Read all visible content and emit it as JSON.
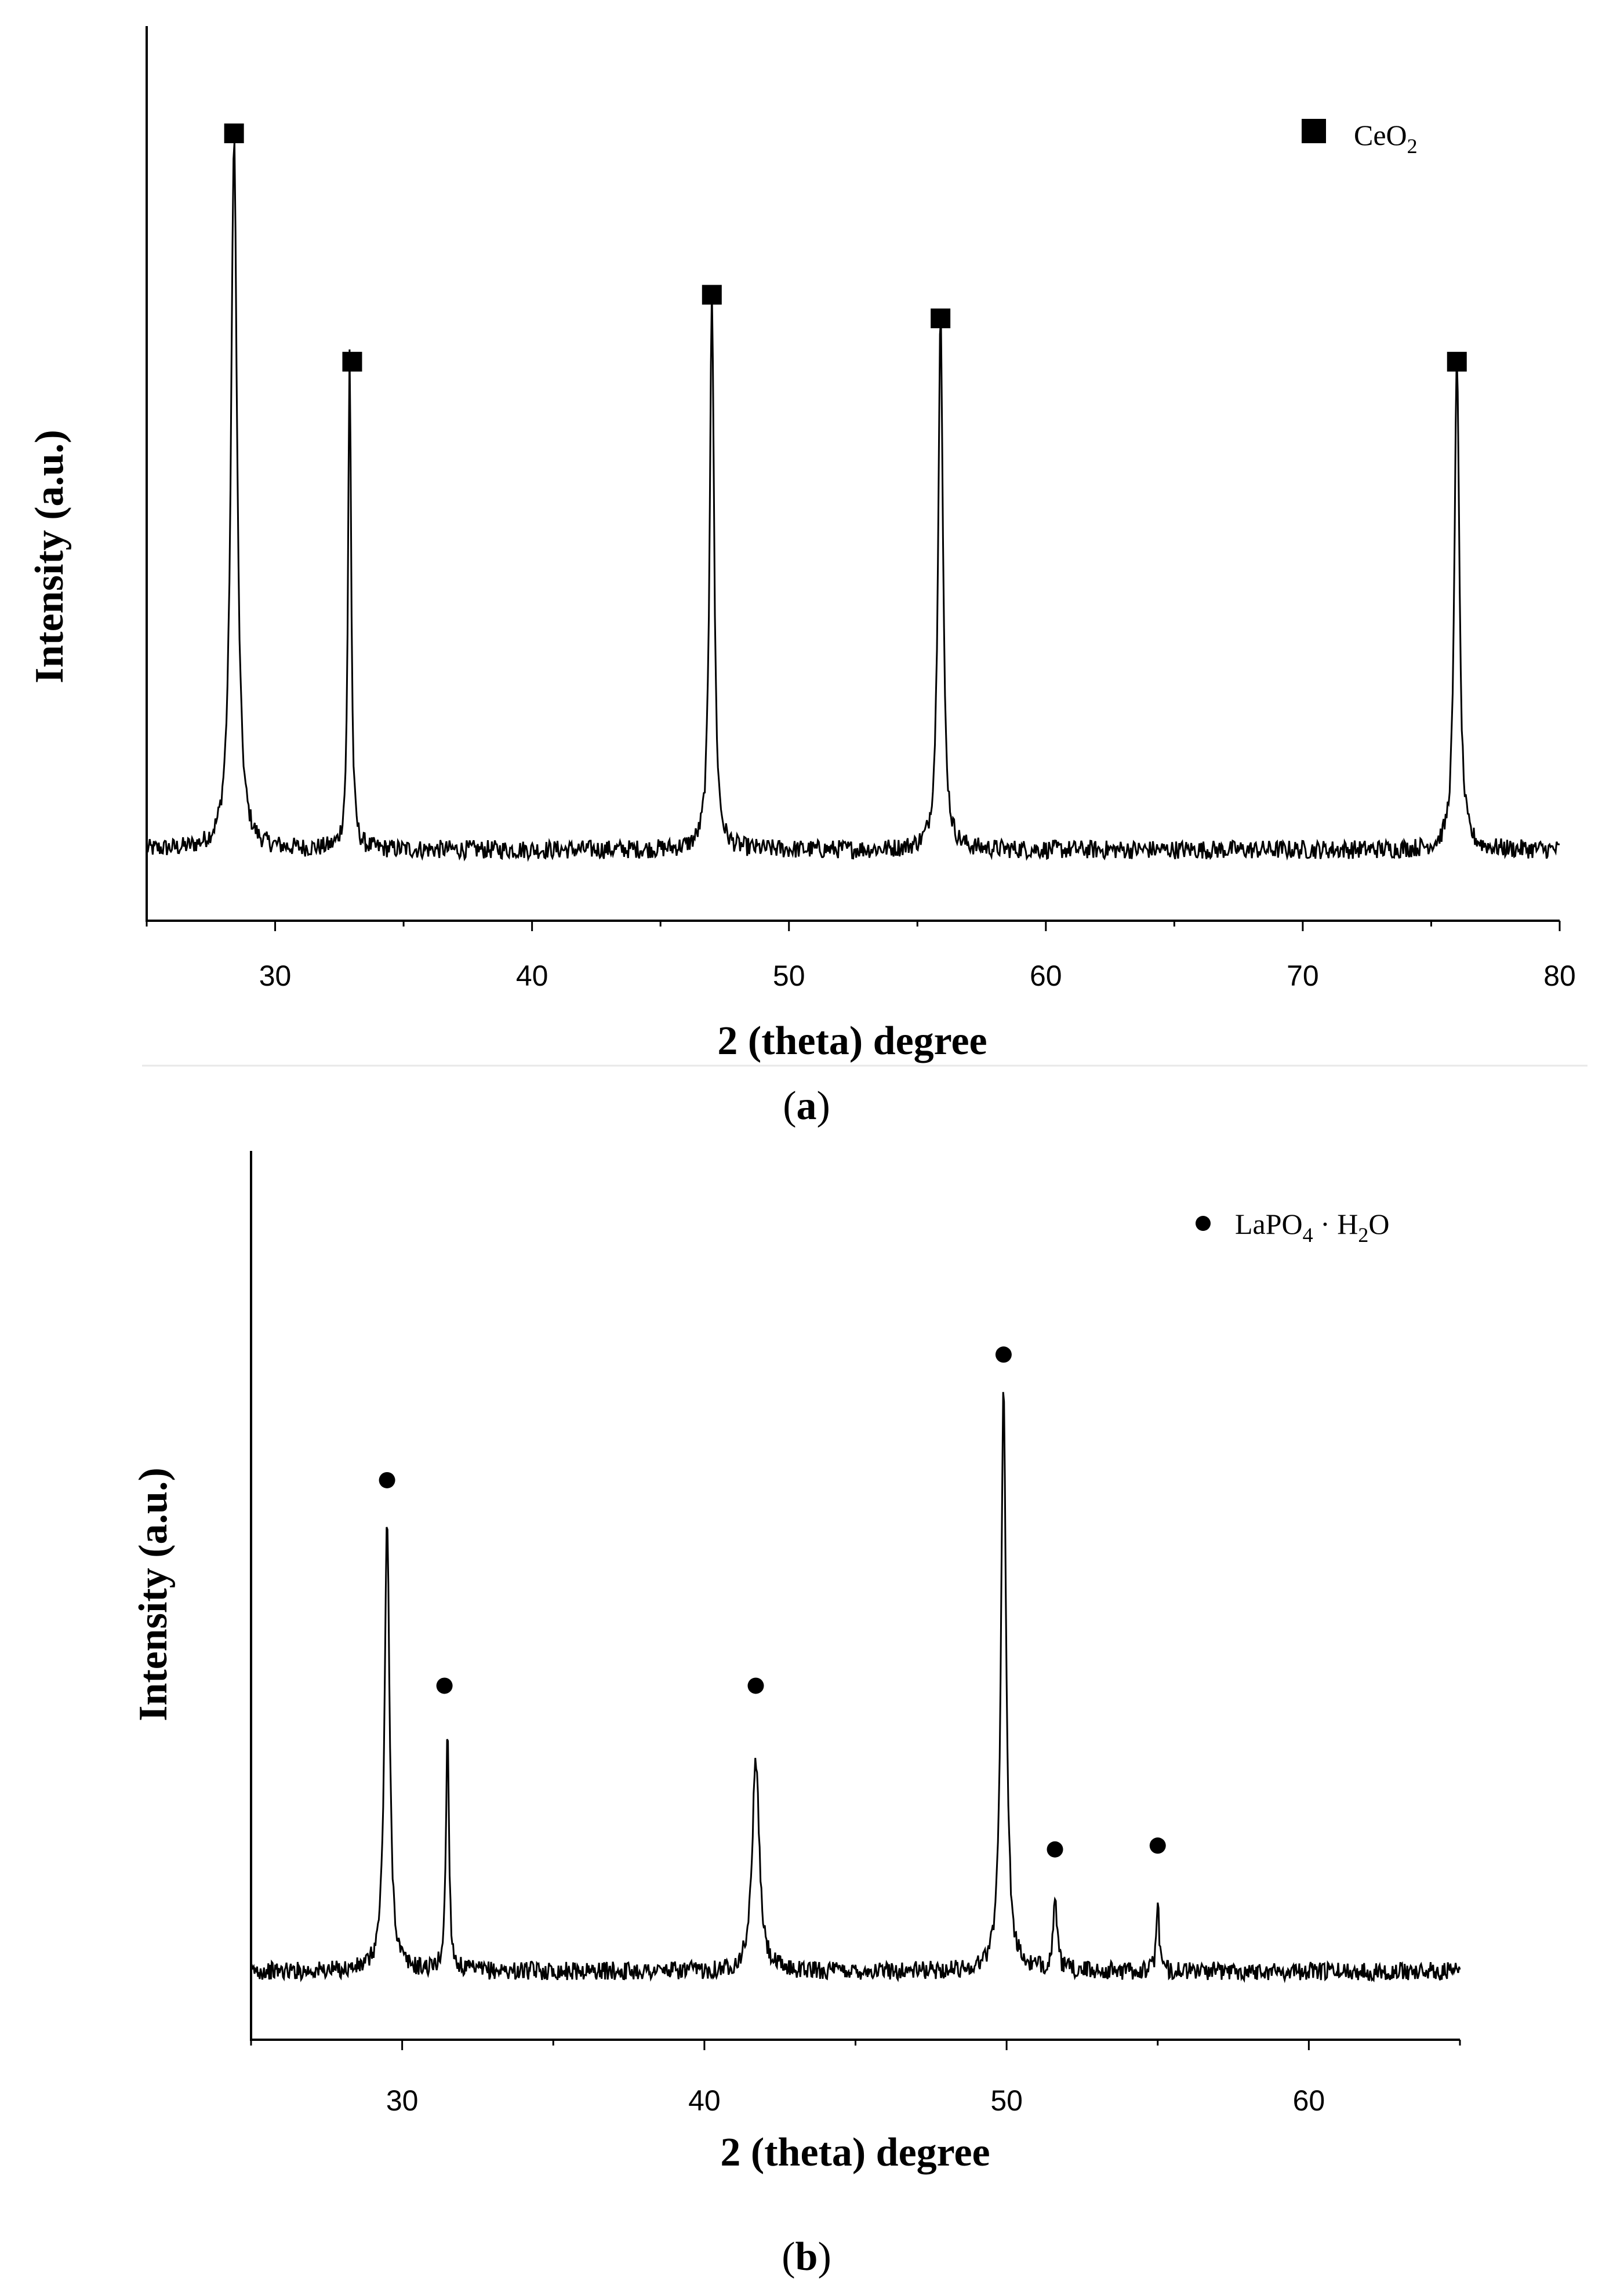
{
  "chart_data": [
    {
      "type": "line",
      "panel": "a",
      "caption_open": "(",
      "caption_letter": "a",
      "caption_close": ")",
      "xlabel": "2 (theta) degree",
      "ylabel": "Intensity (a.u.)",
      "xlim": [
        25,
        80
      ],
      "ylim": [
        0,
        100
      ],
      "xticks": [
        30,
        40,
        50,
        60,
        70,
        80
      ],
      "x_minor_step": 5,
      "yticks_shown": false,
      "legend": {
        "marker": "square",
        "name": "CeO",
        "sub": "2",
        "position": "top-right"
      },
      "baseline": 9,
      "noise": 1.2,
      "peaks": [
        {
          "x": 28.4,
          "height": 91,
          "width": 0.14
        },
        {
          "x": 32.9,
          "height": 64,
          "width": 0.07
        },
        {
          "x": 47.0,
          "height": 72,
          "width": 0.1
        },
        {
          "x": 55.9,
          "height": 69,
          "width": 0.11
        },
        {
          "x": 76.0,
          "height": 64,
          "width": 0.11
        }
      ],
      "series": [
        {
          "name": "CeO2",
          "marker": "square",
          "points": [
            [
              28.4,
              100
            ],
            [
              33.0,
              71
            ],
            [
              47.0,
              79.5
            ],
            [
              55.9,
              76.5
            ],
            [
              76.0,
              71
            ]
          ]
        }
      ]
    },
    {
      "type": "line",
      "panel": "b",
      "caption_open": "(",
      "caption_letter": "b",
      "caption_close": ")",
      "xlabel": "2 (theta) degree",
      "ylabel": "Intensity (a.u.)",
      "xlim": [
        25,
        65
      ],
      "ylim": [
        0,
        100
      ],
      "xticks": [
        30,
        40,
        50,
        60
      ],
      "x_minor_step": 5,
      "yticks_shown": false,
      "legend": {
        "marker": "circle",
        "name": "LaPO",
        "sub1": "4",
        "mid": " · H",
        "sub2": "2",
        "tail": "O",
        "position": "top-right"
      },
      "baseline": 9,
      "noise": 1.2,
      "peaks": [
        {
          "x": 29.5,
          "height": 59,
          "width": 0.1
        },
        {
          "x": 31.5,
          "height": 32,
          "width": 0.06
        },
        {
          "x": 41.7,
          "height": 28,
          "width": 0.14
        },
        {
          "x": 49.9,
          "height": 77,
          "width": 0.1
        },
        {
          "x": 51.6,
          "height": 9,
          "width": 0.08
        },
        {
          "x": 55.0,
          "height": 10,
          "width": 0.05
        }
      ],
      "series": [
        {
          "name": "LaPO4 · H2O",
          "marker": "circle",
          "points": [
            [
              29.5,
              73.5
            ],
            [
              31.4,
              46.5
            ],
            [
              41.7,
              46.5
            ],
            [
              49.9,
              90
            ],
            [
              51.6,
              25
            ],
            [
              55.0,
              25.5
            ]
          ]
        }
      ]
    }
  ]
}
